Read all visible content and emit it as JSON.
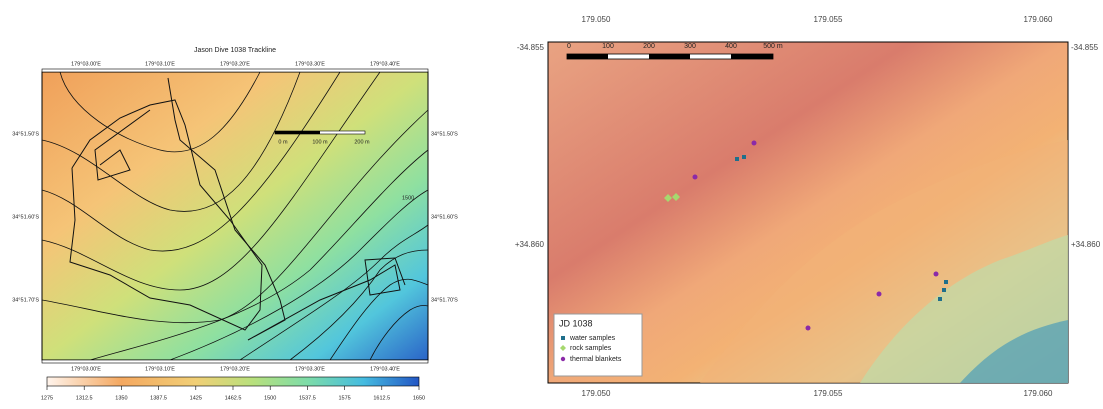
{
  "left_map": {
    "title": "Jason Dive 1038 Trackline",
    "longitude_labels": [
      "179°03.00'E",
      "179°03.10'E",
      "179°03.20'E",
      "179°03.30'E",
      "179°03.40'E"
    ],
    "latitude_labels": [
      "34°51.50'S",
      "34°51.60'S",
      "34°51.70'S"
    ],
    "scale_bar": [
      "0 m",
      "100 m",
      "200 m"
    ],
    "contour_label": "1500",
    "colorbar": {
      "range": [
        1275,
        1650
      ],
      "ticks": [
        1275,
        1312.5,
        1350,
        1387.5,
        1425,
        1462.5,
        1500,
        1537.5,
        1575,
        1612.5,
        1650
      ]
    }
  },
  "right_map": {
    "longitude_labels": [
      "179.050",
      "179.055",
      "179.060"
    ],
    "latitude_labels_left": [
      "-34.855",
      "+34.860"
    ],
    "latitude_labels_right": [
      "-34.855",
      "+34.860"
    ],
    "scale_bar": [
      "0",
      "100",
      "200",
      "300",
      "400",
      "500 m"
    ],
    "legend": {
      "title": "JD 1038",
      "items": [
        "water samples",
        "rock samples",
        "thermal blankets"
      ]
    }
  }
}
